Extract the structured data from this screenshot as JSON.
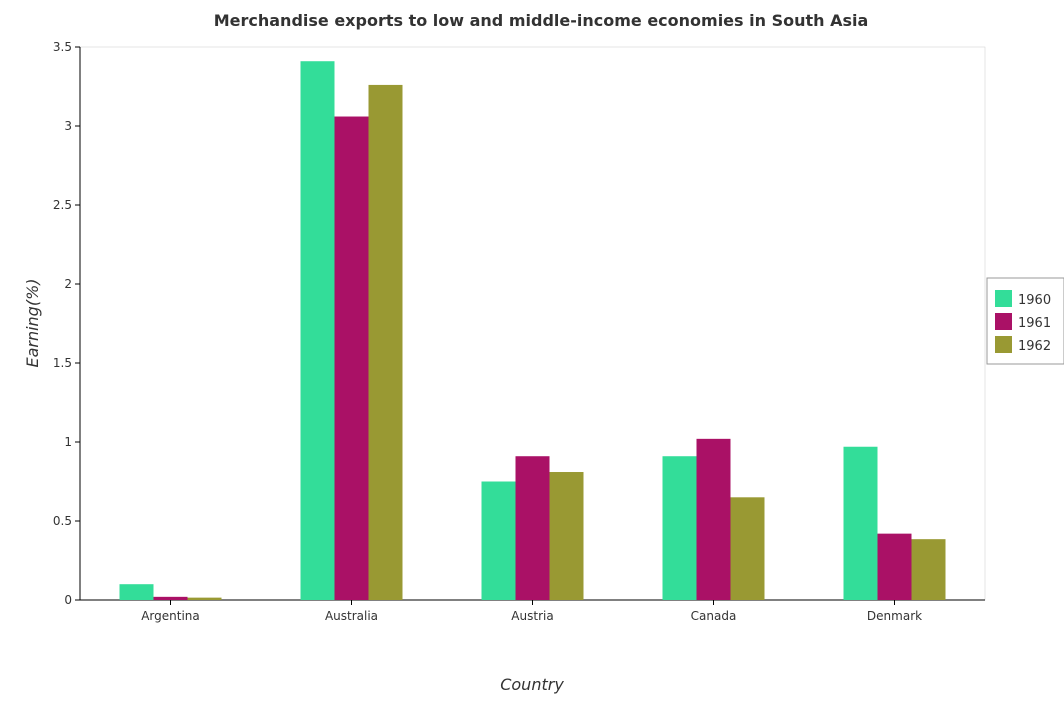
{
  "chart_data": {
    "type": "bar",
    "title": "Merchandise exports to low and middle-income economies in South Asia",
    "xlabel": "Country",
    "ylabel": "Earning(%)",
    "categories": [
      "Argentina",
      "Australia",
      "Austria",
      "Canada",
      "Denmark"
    ],
    "ylim": [
      0,
      3.5
    ],
    "yticks": [
      0,
      0.5,
      1,
      1.5,
      2,
      2.5,
      3,
      3.5
    ],
    "ytick_labels": [
      "0",
      "0.5",
      "1",
      "1.5",
      "2",
      "2.5",
      "3",
      "3.5"
    ],
    "legend_position": "right",
    "grid": false,
    "series": [
      {
        "name": "1960",
        "color": "#33dd99",
        "values": [
          0.1,
          3.41,
          0.75,
          0.91,
          0.97
        ]
      },
      {
        "name": "1961",
        "color": "#aa1166",
        "values": [
          0.02,
          3.06,
          0.91,
          1.02,
          0.42
        ]
      },
      {
        "name": "1962",
        "color": "#999933",
        "values": [
          0.015,
          3.26,
          0.81,
          0.65,
          0.385
        ]
      }
    ]
  }
}
